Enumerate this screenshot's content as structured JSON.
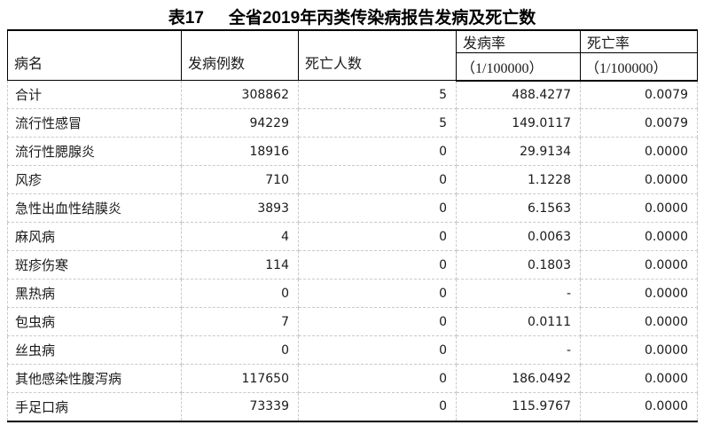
{
  "title": {
    "label": "表17",
    "text": "全省2019年丙类传染病报告发病及死亡数"
  },
  "table": {
    "headers": {
      "disease": "病名",
      "cases": "发病例数",
      "deaths": "死亡人数",
      "incidence_rate": "发病率",
      "incidence_rate_unit": "（1/100000）",
      "mortality_rate": "死亡率",
      "mortality_rate_unit": "（1/100000）"
    },
    "rows": [
      {
        "disease": "合计",
        "cases": "308862",
        "deaths": "5",
        "incidence": "488.4277",
        "mortality": "0.0079"
      },
      {
        "disease": "流行性感冒",
        "cases": "94229",
        "deaths": "5",
        "incidence": "149.0117",
        "mortality": "0.0079"
      },
      {
        "disease": "流行性腮腺炎",
        "cases": "18916",
        "deaths": "0",
        "incidence": "29.9134",
        "mortality": "0.0000"
      },
      {
        "disease": "风疹",
        "cases": "710",
        "deaths": "0",
        "incidence": "1.1228",
        "mortality": "0.0000"
      },
      {
        "disease": "急性出血性结膜炎",
        "cases": "3893",
        "deaths": "0",
        "incidence": "6.1563",
        "mortality": "0.0000"
      },
      {
        "disease": "麻风病",
        "cases": "4",
        "deaths": "0",
        "incidence": "0.0063",
        "mortality": "0.0000"
      },
      {
        "disease": "斑疹伤寒",
        "cases": "114",
        "deaths": "0",
        "incidence": "0.1803",
        "mortality": "0.0000"
      },
      {
        "disease": "黑热病",
        "cases": "0",
        "deaths": "0",
        "incidence": "-",
        "mortality": "0.0000"
      },
      {
        "disease": "包虫病",
        "cases": "7",
        "deaths": "0",
        "incidence": "0.0111",
        "mortality": "0.0000"
      },
      {
        "disease": "丝虫病",
        "cases": "0",
        "deaths": "0",
        "incidence": "-",
        "mortality": "0.0000"
      },
      {
        "disease": "其他感染性腹泻病",
        "cases": "117650",
        "deaths": "0",
        "incidence": "186.0492",
        "mortality": "0.0000"
      },
      {
        "disease": "手足口病",
        "cases": "73339",
        "deaths": "0",
        "incidence": "115.9767",
        "mortality": "0.0000"
      }
    ]
  }
}
